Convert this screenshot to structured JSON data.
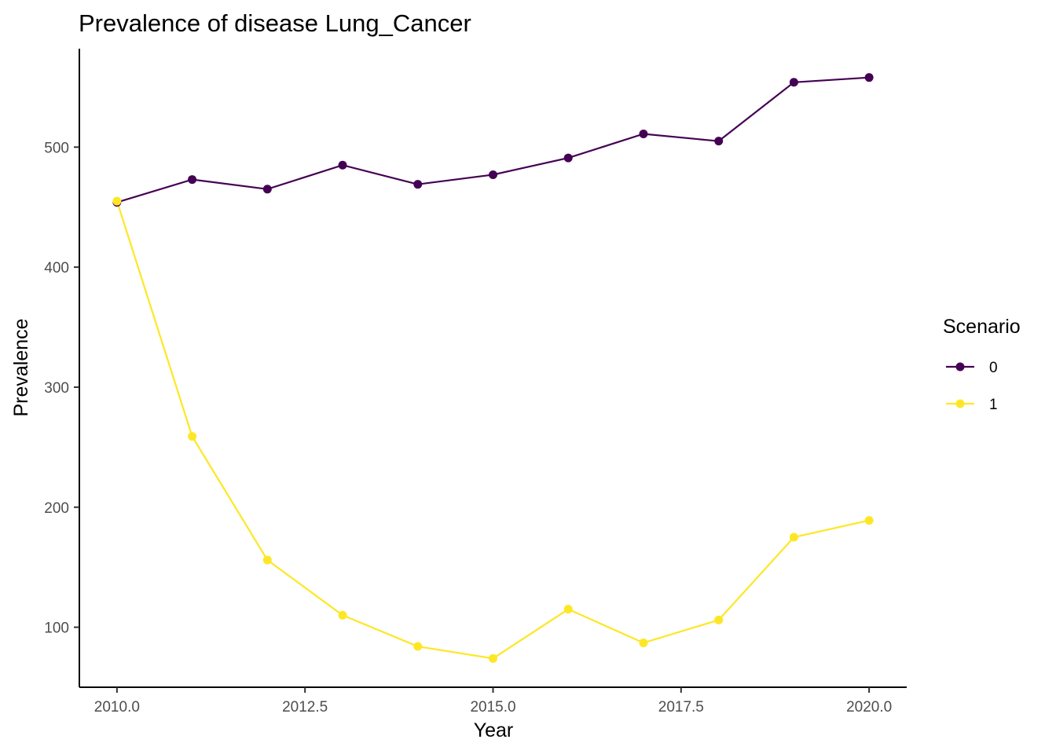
{
  "chart_data": {
    "type": "line",
    "title": "Prevalence of disease Lung_Cancer",
    "xlabel": "Year",
    "ylabel": "Prevalence",
    "xlim": [
      2009.5,
      2020.5
    ],
    "ylim": [
      50,
      582
    ],
    "x_ticks": [
      2010.0,
      2012.5,
      2015.0,
      2017.5,
      2020.0
    ],
    "x_tick_labels": [
      "2010.0",
      "2012.5",
      "2015.0",
      "2017.5",
      "2020.0"
    ],
    "y_ticks": [
      100,
      200,
      300,
      400,
      500
    ],
    "y_tick_labels": [
      "100",
      "200",
      "300",
      "400",
      "500"
    ],
    "grid": false,
    "legend": {
      "title": "Scenario",
      "position": "right"
    },
    "x": [
      2010,
      2011,
      2012,
      2013,
      2014,
      2015,
      2016,
      2017,
      2018,
      2019,
      2020
    ],
    "series": [
      {
        "name": "0",
        "color": "#440154",
        "values": [
          454,
          473,
          465,
          485,
          469,
          477,
          491,
          511,
          505,
          554,
          558
        ]
      },
      {
        "name": "1",
        "color": "#FDE725",
        "values": [
          455,
          259,
          156,
          110,
          84,
          74,
          115,
          87,
          106,
          175,
          189
        ]
      }
    ]
  }
}
